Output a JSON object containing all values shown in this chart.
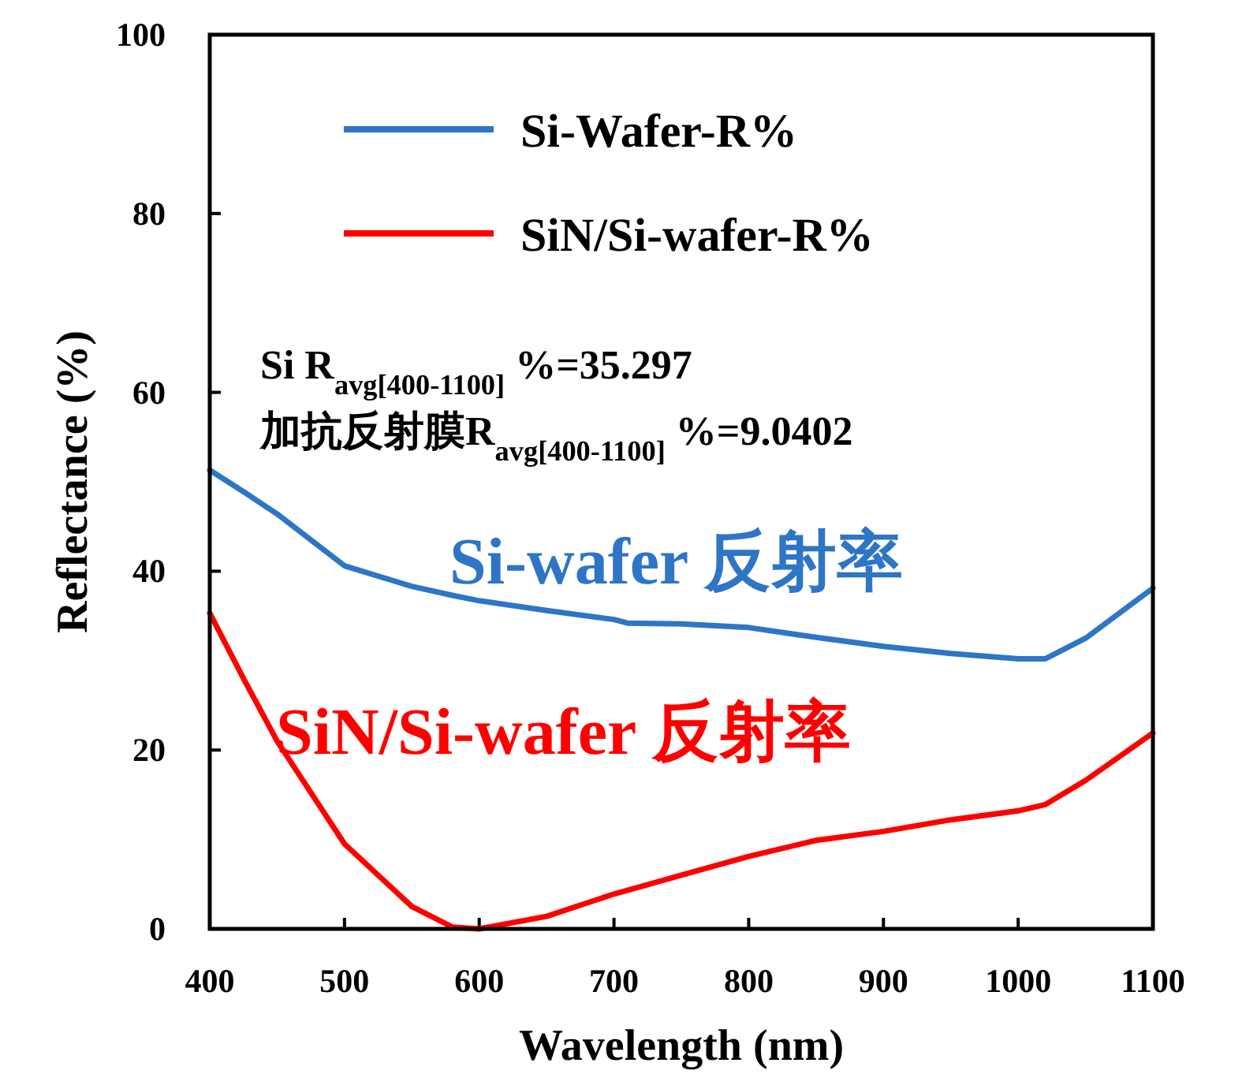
{
  "chart_data": {
    "type": "line",
    "xlabel": "Wavelength (nm)",
    "ylabel": "Reflectance (%)",
    "x": [
      400,
      425,
      450,
      500,
      550,
      580,
      600,
      650,
      700,
      710,
      750,
      800,
      850,
      900,
      950,
      1000,
      1020,
      1050,
      1100
    ],
    "series": [
      {
        "name": "Si-Wafer-R%",
        "color": "#2e75c6",
        "values": [
          51.3,
          48.9,
          46.4,
          40.6,
          38.3,
          37.3,
          36.7,
          35.6,
          34.6,
          34.2,
          34.1,
          33.7,
          32.6,
          31.6,
          30.8,
          30.2,
          30.2,
          32.5,
          38.1
        ]
      },
      {
        "name": "SiN/Si-wafer-R%",
        "color": "#ff0000",
        "values": [
          35.3,
          28.0,
          21.0,
          9.5,
          2.5,
          0.2,
          0.0,
          1.4,
          3.9,
          4.3,
          6.0,
          8.1,
          9.9,
          10.9,
          12.2,
          13.2,
          13.9,
          16.6,
          21.9
        ]
      }
    ],
    "xlim": [
      400,
      1100
    ],
    "ylim": [
      0,
      100
    ],
    "xticks": [
      400,
      500,
      600,
      700,
      800,
      900,
      1000,
      1100
    ],
    "yticks": [
      0,
      20,
      40,
      60,
      80,
      100
    ],
    "legend": "top left",
    "line_style": "solid",
    "annotations": [
      "Si R$_{avg[400-1100]}$ %=35.297",
      "加抗反射膜R$_{avg[400-1100]}$ %=9.0402",
      "Si-wafer 反射率",
      "SiN/Si-wafer 反射率"
    ]
  }
}
